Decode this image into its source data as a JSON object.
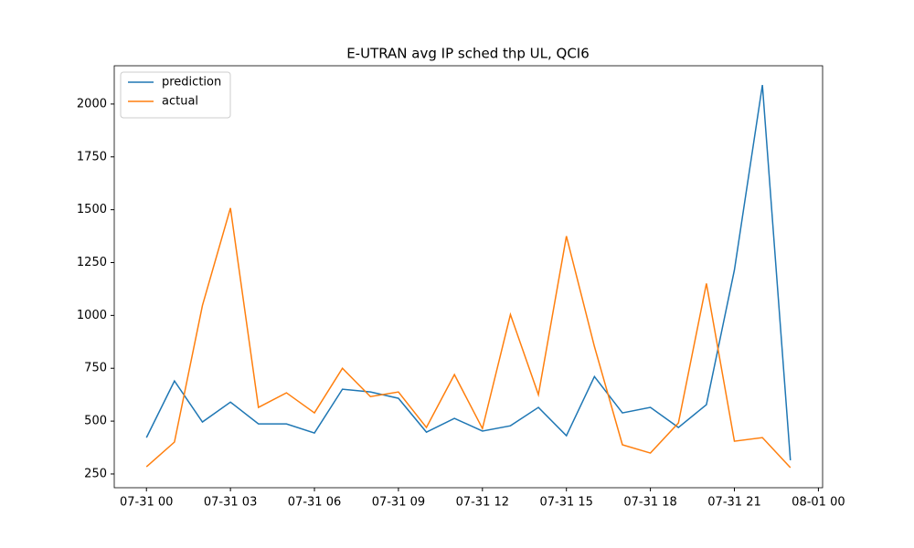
{
  "chart_data": {
    "type": "line",
    "title": "E-UTRAN avg IP sched thp UL, QCI6",
    "x": [
      0,
      1,
      2,
      3,
      4,
      5,
      6,
      7,
      8,
      9,
      10,
      11,
      12,
      13,
      14,
      15,
      16,
      17,
      18,
      19,
      20,
      21,
      22,
      23
    ],
    "series": [
      {
        "name": "prediction",
        "color": "#1f77b4",
        "values": [
          422,
          690,
          496,
          590,
          487,
          487,
          444,
          651,
          638,
          608,
          448,
          513,
          453,
          478,
          565,
          431,
          711,
          539,
          565,
          470,
          578,
          1215,
          2090,
          315
        ]
      },
      {
        "name": "actual",
        "color": "#ff7f0e",
        "values": [
          284,
          401,
          1047,
          1508,
          565,
          634,
          539,
          750,
          616,
          638,
          470,
          720,
          465,
          1004,
          625,
          1375,
          853,
          388,
          349,
          491,
          1151,
          405,
          422,
          280
        ]
      }
    ],
    "xlim": [
      -1.15,
      24.15
    ],
    "xticks": [
      {
        "value": 0,
        "label": "07-31 00"
      },
      {
        "value": 3,
        "label": "07-31 03"
      },
      {
        "value": 6,
        "label": "07-31 06"
      },
      {
        "value": 9,
        "label": "07-31 09"
      },
      {
        "value": 12,
        "label": "07-31 12"
      },
      {
        "value": 15,
        "label": "07-31 15"
      },
      {
        "value": 18,
        "label": "07-31 18"
      },
      {
        "value": 21,
        "label": "07-31 21"
      },
      {
        "value": 24,
        "label": "08-01 00"
      }
    ],
    "ylim": [
      185,
      2181
    ],
    "yticks": [
      250,
      500,
      750,
      1000,
      1250,
      1500,
      1750,
      2000
    ],
    "legend": "upper left"
  }
}
